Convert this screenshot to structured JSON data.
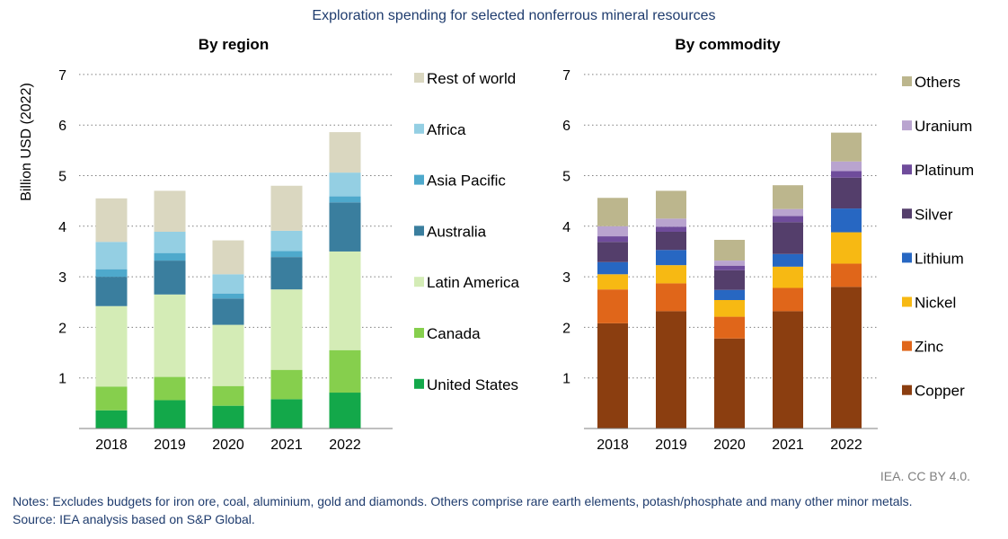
{
  "header": {
    "title": "Exploration spending for selected nonferrous mineral resources"
  },
  "footer": {
    "credit": "IEA. CC BY 4.0.",
    "notes": "Notes: Excludes budgets for iron ore, coal, aluminium, gold and diamonds. Others comprise rare earth elements, potash/phosphate and many other minor metals.",
    "source": "Source: IEA analysis based on S&P Global."
  },
  "chart_data": [
    {
      "type": "bar",
      "stacked": true,
      "title": "By region",
      "xlabel": "",
      "ylabel": "Billion USD (2022)",
      "ylim": [
        0,
        7
      ],
      "yticks": [
        1,
        2,
        3,
        4,
        5,
        6,
        7
      ],
      "grid": true,
      "legend_position": "right",
      "categories": [
        "2018",
        "2019",
        "2020",
        "2021",
        "2022"
      ],
      "series": [
        {
          "name": "United States",
          "color": "#13a84a",
          "values": [
            0.36,
            0.56,
            0.45,
            0.58,
            0.71
          ]
        },
        {
          "name": "Canada",
          "color": "#86cf4d",
          "values": [
            0.47,
            0.46,
            0.39,
            0.58,
            0.84
          ]
        },
        {
          "name": "Latin America",
          "color": "#d4ecb6",
          "values": [
            1.59,
            1.63,
            1.21,
            1.59,
            1.95
          ]
        },
        {
          "name": "Australia",
          "color": "#3a7e9e",
          "values": [
            0.58,
            0.67,
            0.52,
            0.64,
            0.97
          ]
        },
        {
          "name": "Asia Pacific",
          "color": "#4ea9cc",
          "values": [
            0.15,
            0.15,
            0.1,
            0.12,
            0.12
          ]
        },
        {
          "name": "Africa",
          "color": "#94cfe3",
          "values": [
            0.54,
            0.42,
            0.38,
            0.4,
            0.47
          ]
        },
        {
          "name": "Rest of world",
          "color": "#dad7c0",
          "values": [
            0.86,
            0.81,
            0.67,
            0.89,
            0.8
          ]
        }
      ]
    },
    {
      "type": "bar",
      "stacked": true,
      "title": "By commodity",
      "xlabel": "",
      "ylabel": "",
      "ylim": [
        0,
        7
      ],
      "yticks": [
        1,
        2,
        3,
        4,
        5,
        6,
        7
      ],
      "grid": true,
      "legend_position": "right",
      "categories": [
        "2018",
        "2019",
        "2020",
        "2021",
        "2022"
      ],
      "series": [
        {
          "name": "Copper",
          "color": "#8b3e10",
          "values": [
            2.08,
            2.32,
            1.78,
            2.32,
            2.8
          ]
        },
        {
          "name": "Zinc",
          "color": "#e0661a",
          "values": [
            0.67,
            0.55,
            0.43,
            0.46,
            0.46
          ]
        },
        {
          "name": "Nickel",
          "color": "#f7b913",
          "values": [
            0.3,
            0.36,
            0.33,
            0.42,
            0.62
          ]
        },
        {
          "name": "Lithium",
          "color": "#2767c2",
          "values": [
            0.24,
            0.3,
            0.2,
            0.25,
            0.47
          ]
        },
        {
          "name": "Silver",
          "color": "#543e6b",
          "values": [
            0.4,
            0.36,
            0.39,
            0.63,
            0.61
          ]
        },
        {
          "name": "Platinum",
          "color": "#6f4c9b",
          "values": [
            0.11,
            0.1,
            0.09,
            0.12,
            0.13
          ]
        },
        {
          "name": "Uranium",
          "color": "#b9a4cf",
          "values": [
            0.2,
            0.16,
            0.1,
            0.14,
            0.19
          ]
        },
        {
          "name": "Others",
          "color": "#bcb68d",
          "values": [
            0.56,
            0.55,
            0.41,
            0.47,
            0.57
          ]
        }
      ]
    }
  ]
}
